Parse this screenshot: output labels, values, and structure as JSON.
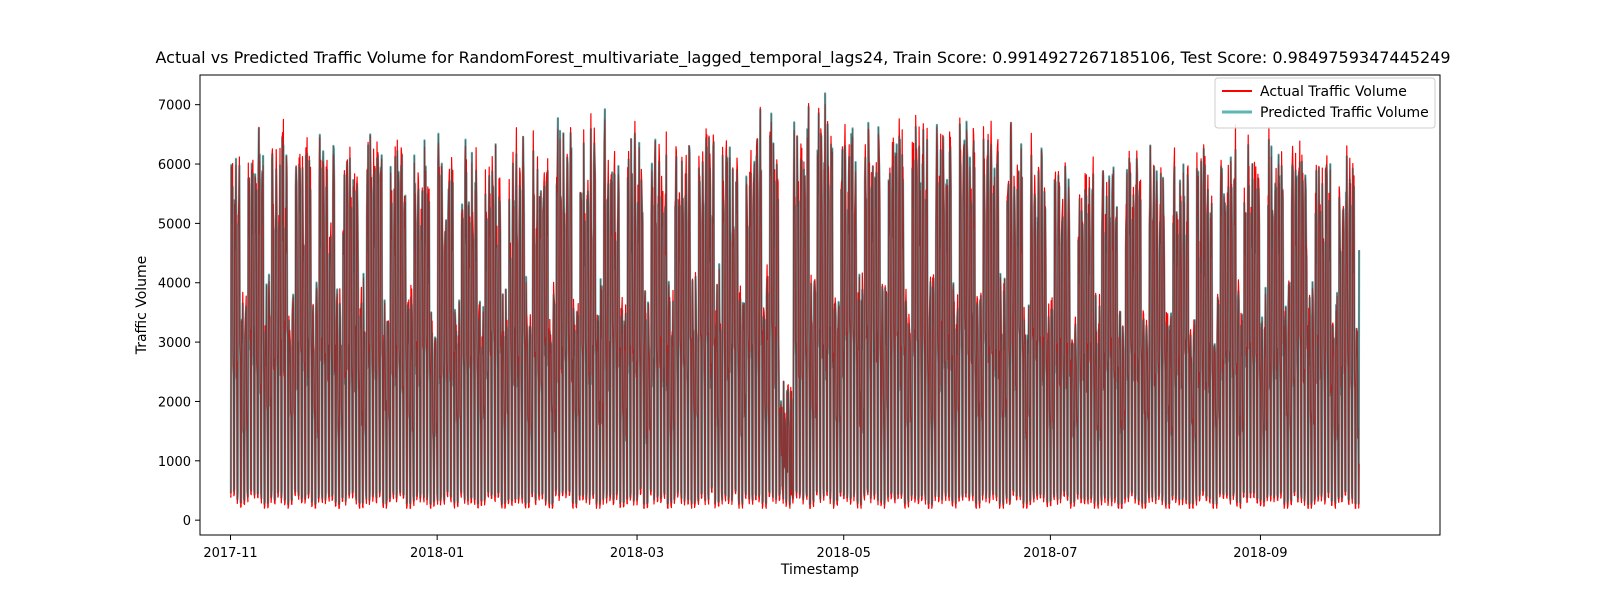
{
  "chart_data": {
    "type": "line",
    "title": "Actual vs Predicted Traffic Volume for RandomForest_multivariate_lagged_temporal_lags24, Train Score: 0.9914927267185106, Test Score: 0.9849759347445249",
    "xlabel": "Timestamp",
    "ylabel": "Traffic Volume",
    "xlim": [
      "2017-10-23",
      "2018-10-24"
    ],
    "ylim": [
      -250,
      7500
    ],
    "x_ticks": [
      "2017-11",
      "2018-01",
      "2018-03",
      "2018-05",
      "2018-07",
      "2018-09"
    ],
    "y_ticks": [
      0,
      1000,
      2000,
      3000,
      4000,
      5000,
      6000,
      7000
    ],
    "grid": false,
    "legend_position": "top-right",
    "x_range": [
      "2017-11-01",
      "2018-09-30"
    ],
    "series": [
      {
        "name": "Actual Traffic Volume",
        "color": "#ff0000",
        "description": "hourly series, daily oscillation between ~250 (night) and ~6000-7200 (day peaks); weekdays high, weekends lower",
        "daily_peaks": {
          "2017-11-01": 6800,
          "2017-11-15": 6900,
          "2017-12-01": 6700,
          "2017-12-15": 6800,
          "2018-01-01": 6500,
          "2018-01-15": 6600,
          "2018-02-01": 6800,
          "2018-02-15": 6900,
          "2018-03-01": 6800,
          "2018-03-15": 6900,
          "2018-04-01": 6900,
          "2018-04-10": 7200,
          "2018-04-25": 7150,
          "2018-05-10": 7100,
          "2018-05-25": 7000,
          "2018-06-10": 7050,
          "2018-06-25": 6800,
          "2018-07-10": 6300,
          "2018-07-25": 6500,
          "2018-08-10": 6500,
          "2018-08-25": 6700,
          "2018-09-10": 6700,
          "2018-09-25": 6500
        },
        "min_value": 200,
        "end_value": 950
      },
      {
        "name": "Predicted Traffic Volume",
        "color": "#5fb4b4",
        "description": "closely tracks actual with slightly lower peaks and slightly higher troughs",
        "min_value": 100,
        "end_value": 4550
      }
    ]
  }
}
